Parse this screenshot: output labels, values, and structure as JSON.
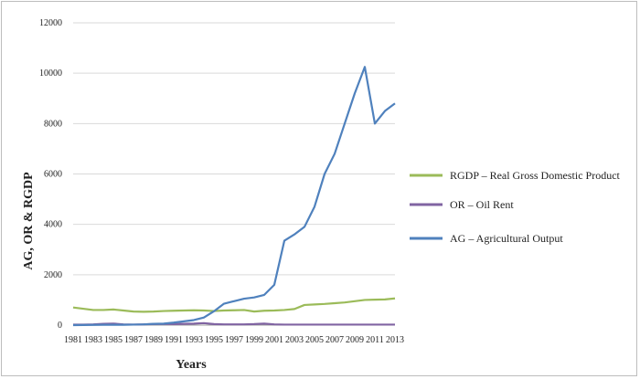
{
  "chart_data": {
    "type": "line",
    "title": "",
    "xlabel": "Years",
    "ylabel": "AG, OR & RGDP",
    "ylim": [
      0,
      12000
    ],
    "yticks": [
      "0",
      "2000",
      "4000",
      "6000",
      "8000",
      "10000",
      "12000"
    ],
    "x": [
      "1981",
      "1982",
      "1983",
      "1984",
      "1985",
      "1986",
      "1987",
      "1988",
      "1989",
      "1990",
      "1991",
      "1992",
      "1993",
      "1994",
      "1995",
      "1996",
      "1997",
      "1998",
      "1999",
      "2000",
      "2001",
      "2002",
      "2003",
      "2004",
      "2005",
      "2006",
      "2007",
      "2008",
      "2009",
      "2010",
      "2011",
      "2012",
      "2013"
    ],
    "xtick_labels": [
      "1981",
      "1983",
      "1985",
      "1987",
      "1989",
      "1991",
      "1993",
      "1995",
      "1997",
      "1999",
      "2001",
      "2003",
      "2005",
      "2007",
      "2009",
      "2011",
      "2013"
    ],
    "grid": "horizontal",
    "legend_position": "right",
    "series": [
      {
        "name": "RGDP – Real Gross Domestic Product",
        "color": "#9bbb59",
        "values": [
          700,
          650,
          600,
          600,
          620,
          580,
          540,
          530,
          540,
          560,
          570,
          580,
          590,
          580,
          560,
          580,
          590,
          600,
          540,
          570,
          580,
          600,
          640,
          800,
          820,
          840,
          870,
          900,
          950,
          1000,
          1010,
          1020,
          1060
        ]
      },
      {
        "name": "OR – Oil Rent",
        "color": "#8064a2",
        "values": [
          20,
          20,
          30,
          50,
          60,
          30,
          20,
          30,
          40,
          50,
          40,
          50,
          60,
          80,
          40,
          30,
          30,
          30,
          40,
          60,
          30,
          20,
          20,
          20,
          20,
          20,
          20,
          20,
          20,
          20,
          20,
          20,
          20
        ]
      },
      {
        "name": "AG – Agricultural Output",
        "color": "#4f81bd",
        "values": [
          0,
          5,
          10,
          15,
          15,
          15,
          20,
          30,
          50,
          60,
          100,
          150,
          200,
          300,
          550,
          850,
          950,
          1050,
          1100,
          1200,
          1600,
          3350,
          3600,
          3900,
          4700,
          6000,
          6800,
          8000,
          9200,
          10250,
          8000,
          8500,
          8800
        ]
      }
    ]
  }
}
